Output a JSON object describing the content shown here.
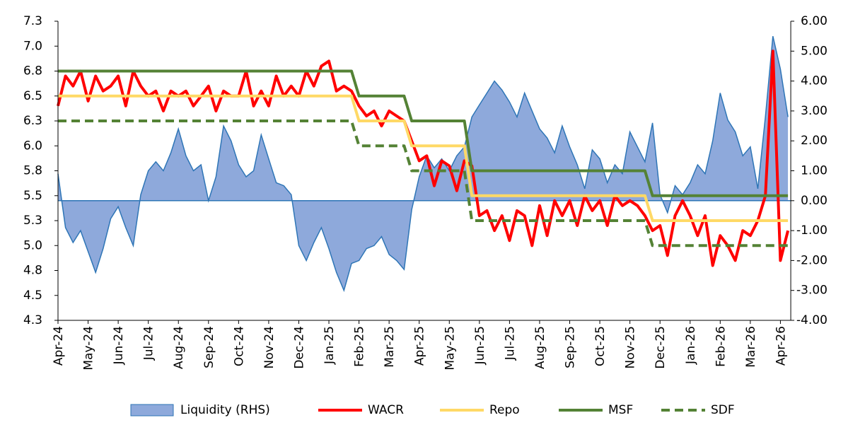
{
  "chart_data": {
    "type": "line",
    "categories": [
      "Apr-24",
      null,
      null,
      null,
      "May-24",
      null,
      null,
      null,
      "Jun-24",
      null,
      null,
      null,
      "Jul-24",
      null,
      null,
      null,
      "Aug-24",
      null,
      null,
      null,
      "Sep-24",
      null,
      null,
      null,
      "Oct-24",
      null,
      null,
      null,
      "Nov-24",
      null,
      null,
      null,
      "Dec-24",
      null,
      null,
      null,
      "Jan-25",
      null,
      null,
      null,
      "Feb-25",
      null,
      null,
      null,
      "Mar-25",
      null,
      null,
      null,
      "Apr-25",
      null,
      null,
      null,
      "May-25",
      null,
      null,
      null,
      "Jun-25",
      null,
      null,
      null,
      "Jul-25",
      null,
      null,
      null,
      "Aug-25",
      null,
      null,
      null,
      "Sep-25",
      null,
      null,
      null,
      "Oct-25",
      null,
      null,
      null,
      "Nov-25",
      null,
      null,
      null,
      "Dec-25",
      null,
      null,
      null,
      "Jan-26",
      null,
      null,
      null,
      "Feb-26",
      null,
      null,
      null,
      "Mar-26",
      null,
      null,
      null,
      "Apr-26",
      null
    ],
    "series": [
      {
        "name": "Liquidity (RHS)",
        "type": "area",
        "axis": "y2",
        "color": "#8ea9db",
        "line_color": "#2e75b6",
        "values": [
          0.9,
          -0.9,
          -1.4,
          -1.0,
          -1.7,
          -2.4,
          -1.6,
          -0.6,
          -0.2,
          -0.9,
          -1.5,
          0.2,
          1.0,
          1.3,
          1.0,
          1.6,
          2.4,
          1.5,
          1.0,
          1.2,
          0.0,
          0.8,
          2.5,
          2.0,
          1.2,
          0.8,
          1.0,
          2.2,
          1.4,
          0.6,
          0.5,
          0.2,
          -1.5,
          -2.0,
          -1.4,
          -0.9,
          -1.6,
          -2.4,
          -3.0,
          -2.1,
          -2.0,
          -1.6,
          -1.5,
          -1.2,
          -1.8,
          -2.0,
          -2.3,
          -0.3,
          0.8,
          1.5,
          1.1,
          1.4,
          1.0,
          1.5,
          1.8,
          2.8,
          3.2,
          3.6,
          4.0,
          3.7,
          3.3,
          2.8,
          3.6,
          3.0,
          2.4,
          2.1,
          1.6,
          2.5,
          1.8,
          1.2,
          0.4,
          1.7,
          1.4,
          0.6,
          1.2,
          0.9,
          2.3,
          1.8,
          1.3,
          2.6,
          0.2,
          -0.4,
          0.5,
          0.2,
          0.6,
          1.2,
          0.9,
          2.0,
          3.6,
          2.7,
          2.3,
          1.5,
          1.8,
          0.4,
          2.8,
          5.5,
          4.4,
          2.8
        ]
      },
      {
        "name": "WACR",
        "type": "line",
        "color": "#ff0000",
        "values": [
          6.4,
          6.7,
          6.6,
          6.75,
          6.45,
          6.7,
          6.55,
          6.6,
          6.7,
          6.4,
          6.75,
          6.6,
          6.5,
          6.55,
          6.35,
          6.55,
          6.5,
          6.55,
          6.4,
          6.5,
          6.6,
          6.35,
          6.55,
          6.5,
          6.5,
          6.75,
          6.4,
          6.55,
          6.4,
          6.7,
          6.5,
          6.6,
          6.5,
          6.75,
          6.6,
          6.8,
          6.85,
          6.55,
          6.6,
          6.55,
          6.4,
          6.3,
          6.35,
          6.2,
          6.35,
          6.3,
          6.25,
          6.05,
          5.85,
          5.9,
          5.6,
          5.85,
          5.8,
          5.55,
          5.85,
          5.8,
          5.3,
          5.35,
          5.15,
          5.3,
          5.05,
          5.35,
          5.3,
          5.0,
          5.4,
          5.1,
          5.45,
          5.3,
          5.45,
          5.2,
          5.5,
          5.35,
          5.45,
          5.2,
          5.5,
          5.4,
          5.45,
          5.4,
          5.3,
          5.15,
          5.2,
          4.9,
          5.3,
          5.45,
          5.3,
          5.1,
          5.3,
          4.8,
          5.1,
          5.0,
          4.85,
          5.15,
          5.1,
          5.25,
          5.5,
          6.95,
          4.85,
          5.15
        ]
      },
      {
        "name": "Repo",
        "type": "line",
        "color": "#ffd966",
        "values": [
          6.5,
          6.5,
          6.5,
          6.5,
          6.5,
          6.5,
          6.5,
          6.5,
          6.5,
          6.5,
          6.5,
          6.5,
          6.5,
          6.5,
          6.5,
          6.5,
          6.5,
          6.5,
          6.5,
          6.5,
          6.5,
          6.5,
          6.5,
          6.5,
          6.5,
          6.5,
          6.5,
          6.5,
          6.5,
          6.5,
          6.5,
          6.5,
          6.5,
          6.5,
          6.5,
          6.5,
          6.5,
          6.5,
          6.5,
          6.5,
          6.25,
          6.25,
          6.25,
          6.25,
          6.25,
          6.25,
          6.25,
          6.0,
          6.0,
          6.0,
          6.0,
          6.0,
          6.0,
          6.0,
          6.0,
          5.5,
          5.5,
          5.5,
          5.5,
          5.5,
          5.5,
          5.5,
          5.5,
          5.5,
          5.5,
          5.5,
          5.5,
          5.5,
          5.5,
          5.5,
          5.5,
          5.5,
          5.5,
          5.5,
          5.5,
          5.5,
          5.5,
          5.5,
          5.5,
          5.25,
          5.25,
          5.25,
          5.25,
          5.25,
          5.25,
          5.25,
          5.25,
          5.25,
          5.25,
          5.25,
          5.25,
          5.25,
          5.25,
          5.25,
          5.25,
          5.25,
          5.25,
          5.25
        ]
      },
      {
        "name": "MSF",
        "type": "line",
        "color": "#548235",
        "values": [
          6.75,
          6.75,
          6.75,
          6.75,
          6.75,
          6.75,
          6.75,
          6.75,
          6.75,
          6.75,
          6.75,
          6.75,
          6.75,
          6.75,
          6.75,
          6.75,
          6.75,
          6.75,
          6.75,
          6.75,
          6.75,
          6.75,
          6.75,
          6.75,
          6.75,
          6.75,
          6.75,
          6.75,
          6.75,
          6.75,
          6.75,
          6.75,
          6.75,
          6.75,
          6.75,
          6.75,
          6.75,
          6.75,
          6.75,
          6.75,
          6.5,
          6.5,
          6.5,
          6.5,
          6.5,
          6.5,
          6.5,
          6.25,
          6.25,
          6.25,
          6.25,
          6.25,
          6.25,
          6.25,
          6.25,
          5.75,
          5.75,
          5.75,
          5.75,
          5.75,
          5.75,
          5.75,
          5.75,
          5.75,
          5.75,
          5.75,
          5.75,
          5.75,
          5.75,
          5.75,
          5.75,
          5.75,
          5.75,
          5.75,
          5.75,
          5.75,
          5.75,
          5.75,
          5.75,
          5.5,
          5.5,
          5.5,
          5.5,
          5.5,
          5.5,
          5.5,
          5.5,
          5.5,
          5.5,
          5.5,
          5.5,
          5.5,
          5.5,
          5.5,
          5.5,
          5.5,
          5.5,
          5.5
        ]
      },
      {
        "name": "SDF",
        "type": "line",
        "color": "#548235",
        "dashed": true,
        "values": [
          6.25,
          6.25,
          6.25,
          6.25,
          6.25,
          6.25,
          6.25,
          6.25,
          6.25,
          6.25,
          6.25,
          6.25,
          6.25,
          6.25,
          6.25,
          6.25,
          6.25,
          6.25,
          6.25,
          6.25,
          6.25,
          6.25,
          6.25,
          6.25,
          6.25,
          6.25,
          6.25,
          6.25,
          6.25,
          6.25,
          6.25,
          6.25,
          6.25,
          6.25,
          6.25,
          6.25,
          6.25,
          6.25,
          6.25,
          6.25,
          6.0,
          6.0,
          6.0,
          6.0,
          6.0,
          6.0,
          6.0,
          5.75,
          5.75,
          5.75,
          5.75,
          5.75,
          5.75,
          5.75,
          5.75,
          5.25,
          5.25,
          5.25,
          5.25,
          5.25,
          5.25,
          5.25,
          5.25,
          5.25,
          5.25,
          5.25,
          5.25,
          5.25,
          5.25,
          5.25,
          5.25,
          5.25,
          5.25,
          5.25,
          5.25,
          5.25,
          5.25,
          5.25,
          5.25,
          5.0,
          5.0,
          5.0,
          5.0,
          5.0,
          5.0,
          5.0,
          5.0,
          5.0,
          5.0,
          5.0,
          5.0,
          5.0,
          5.0,
          5.0,
          5.0,
          5.0,
          5.0,
          5.0
        ]
      }
    ],
    "ylim": [
      4.25,
      7.25
    ],
    "yticks": [
      {
        "value": 4.25,
        "label": "4.3"
      },
      {
        "value": 4.5,
        "label": "4.5"
      },
      {
        "value": 4.75,
        "label": "4.8"
      },
      {
        "value": 5.0,
        "label": "5.0"
      },
      {
        "value": 5.25,
        "label": "5.3"
      },
      {
        "value": 5.5,
        "label": "5.5"
      },
      {
        "value": 5.75,
        "label": "5.8"
      },
      {
        "value": 6.0,
        "label": "6.0"
      },
      {
        "value": 6.25,
        "label": "6.3"
      },
      {
        "value": 6.5,
        "label": "6.5"
      },
      {
        "value": 6.75,
        "label": "6.8"
      },
      {
        "value": 7.0,
        "label": "7.0"
      },
      {
        "value": 7.25,
        "label": "7.3"
      }
    ],
    "y2lim": [
      -4,
      6
    ],
    "y2ticks": [
      {
        "value": -4,
        "label": "-4.00"
      },
      {
        "value": -3,
        "label": "-3.00"
      },
      {
        "value": -2,
        "label": "-2.00"
      },
      {
        "value": -1,
        "label": "-1.00"
      },
      {
        "value": 0,
        "label": "0.00"
      },
      {
        "value": 1,
        "label": "1.00"
      },
      {
        "value": 2,
        "label": "2.00"
      },
      {
        "value": 3,
        "label": "3.00"
      },
      {
        "value": 4,
        "label": "4.00"
      },
      {
        "value": 5,
        "label": "5.00"
      },
      {
        "value": 6,
        "label": "6.00"
      }
    ],
    "legend": "bottom"
  }
}
